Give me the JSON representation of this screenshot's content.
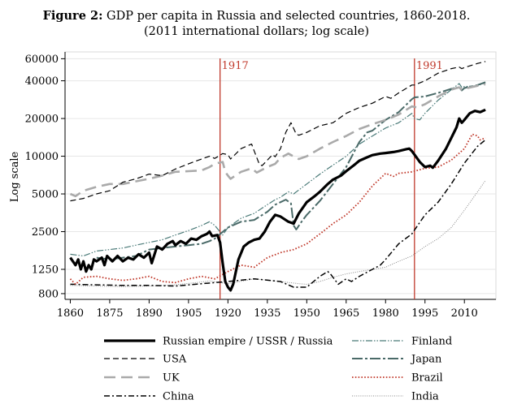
{
  "figure": {
    "label": "Figure 2:",
    "title": "GDP per capita in Russia and selected countries, 1860-2018.",
    "subtitle": "(2011 international dollars; log scale)"
  },
  "chart_data": {
    "type": "line",
    "title": "Figure 2: GDP per capita in Russia and selected countries, 1860-2018.",
    "subtitle": "(2011 international dollars; log scale)",
    "xlabel": "",
    "ylabel": "Log scale",
    "xlim": [
      1858,
      2022
    ],
    "ylim": [
      720,
      68000
    ],
    "y_scale": "log",
    "grid": true,
    "legend_position": "bottom",
    "x_ticks": [
      1860,
      1875,
      1890,
      1905,
      1920,
      1935,
      1950,
      1965,
      1980,
      1995,
      2010
    ],
    "y_ticks": [
      800,
      1250,
      2500,
      5000,
      10000,
      20000,
      40000,
      60000
    ],
    "y_tick_labels": [
      "800",
      "1250",
      "2500",
      "5000",
      "10000",
      "20000",
      "40000",
      "60000"
    ],
    "vlines": [
      {
        "x": 1917,
        "label": "1917",
        "color": "#c0392b"
      },
      {
        "x": 1991,
        "label": "1991",
        "color": "#c0392b"
      }
    ],
    "series": [
      {
        "name": "Russian empire / USSR / Russia",
        "color": "#000000",
        "style": "solid-thick",
        "x": [
          1860,
          1862,
          1863,
          1864,
          1865,
          1866,
          1867,
          1868,
          1869,
          1870,
          1872,
          1873,
          1874,
          1876,
          1878,
          1880,
          1882,
          1884,
          1886,
          1888,
          1890,
          1891,
          1893,
          1895,
          1897,
          1899,
          1900,
          1902,
          1904,
          1906,
          1908,
          1910,
          1912,
          1913,
          1914,
          1916,
          1917,
          1918,
          1919,
          1920,
          1921,
          1922,
          1924,
          1926,
          1928,
          1930,
          1932,
          1934,
          1936,
          1938,
          1940,
          1943,
          1945,
          1947,
          1950,
          1953,
          1955,
          1958,
          1960,
          1963,
          1965,
          1968,
          1970,
          1973,
          1975,
          1978,
          1980,
          1983,
          1985,
          1988,
          1989,
          1990,
          1991,
          1993,
          1995,
          1997,
          1998,
          2000,
          2003,
          2005,
          2007,
          2008,
          2009,
          2010,
          2012,
          2014,
          2016,
          2018
        ],
        "y": [
          1550,
          1350,
          1500,
          1250,
          1450,
          1200,
          1350,
          1250,
          1500,
          1450,
          1550,
          1350,
          1600,
          1450,
          1600,
          1450,
          1550,
          1500,
          1650,
          1550,
          1700,
          1400,
          1900,
          1800,
          2000,
          2100,
          1950,
          2100,
          2000,
          2200,
          2150,
          2300,
          2400,
          2500,
          2300,
          2350,
          2050,
          1400,
          1000,
          900,
          850,
          950,
          1500,
          1900,
          2050,
          2150,
          2200,
          2500,
          3000,
          3400,
          3300,
          3000,
          2900,
          3500,
          4300,
          4800,
          5200,
          6000,
          6500,
          7000,
          7600,
          8500,
          9200,
          9800,
          10200,
          10500,
          10600,
          10800,
          11000,
          11400,
          11500,
          11000,
          10300,
          9000,
          8200,
          8400,
          8100,
          9200,
          11500,
          14000,
          17000,
          20000,
          18500,
          19500,
          22000,
          23000,
          22500,
          23500
        ]
      },
      {
        "name": "USA",
        "color": "#000000",
        "style": "dashed",
        "x": [
          1860,
          1865,
          1870,
          1875,
          1880,
          1885,
          1890,
          1895,
          1900,
          1905,
          1910,
          1913,
          1915,
          1918,
          1920,
          1921,
          1925,
          1929,
          1930,
          1932,
          1933,
          1935,
          1937,
          1938,
          1940,
          1942,
          1944,
          1946,
          1947,
          1950,
          1955,
          1960,
          1965,
          1970,
          1975,
          1980,
          1982,
          1985,
          1990,
          1991,
          1995,
          2000,
          2005,
          2008,
          2009,
          2010,
          2015,
          2018
        ],
        "y": [
          4400,
          4600,
          5000,
          5300,
          6200,
          6600,
          7200,
          7000,
          7900,
          8700,
          9500,
          10000,
          9600,
          10500,
          10300,
          9500,
          11500,
          12500,
          11000,
          8600,
          8400,
          9300,
          10300,
          9900,
          11500,
          15500,
          18500,
          15000,
          14700,
          15500,
          17500,
          18500,
          22000,
          24500,
          26500,
          30000,
          29000,
          32000,
          37000,
          37000,
          40000,
          46000,
          50000,
          51500,
          50000,
          51000,
          55000,
          57000
        ]
      },
      {
        "name": "UK",
        "color": "#aaaaaa",
        "style": "long-dash",
        "x": [
          1860,
          1862,
          1865,
          1870,
          1875,
          1880,
          1885,
          1890,
          1895,
          1900,
          1905,
          1910,
          1913,
          1915,
          1918,
          1919,
          1920,
          1921,
          1925,
          1929,
          1931,
          1935,
          1938,
          1940,
          1943,
          1946,
          1947,
          1950,
          1955,
          1960,
          1965,
          1970,
          1975,
          1980,
          1985,
          1990,
          1992,
          1995,
          2000,
          2005,
          2008,
          2009,
          2010,
          2015,
          2018
        ],
        "y": [
          5000,
          4800,
          5300,
          5700,
          6000,
          6000,
          6300,
          6600,
          7000,
          7500,
          7600,
          7700,
          8200,
          8700,
          9000,
          7500,
          7000,
          6600,
          7500,
          8000,
          7400,
          8200,
          8700,
          9700,
          10500,
          9700,
          9500,
          10000,
          11500,
          13000,
          14500,
          16500,
          18000,
          19500,
          21500,
          25000,
          24500,
          26000,
          30000,
          34000,
          35500,
          34000,
          34500,
          36500,
          37500
        ]
      },
      {
        "name": "China",
        "color": "#000000",
        "style": "dash-dot",
        "x": [
          1860,
          1870,
          1880,
          1890,
          1900,
          1910,
          1920,
          1930,
          1940,
          1945,
          1950,
          1955,
          1958,
          1959,
          1962,
          1965,
          1967,
          1970,
          1975,
          1978,
          1980,
          1985,
          1990,
          1995,
          2000,
          2005,
          2010,
          2015,
          2018
        ],
        "y": [
          950,
          940,
          930,
          930,
          920,
          960,
          1000,
          1050,
          1000,
          900,
          900,
          1100,
          1200,
          1150,
          950,
          1050,
          1000,
          1100,
          1250,
          1350,
          1500,
          2000,
          2400,
          3400,
          4300,
          6000,
          8800,
          12000,
          13500
        ]
      },
      {
        "name": "Finland",
        "color": "#4a7a78",
        "style": "dash-dot-dot",
        "x": [
          1860,
          1865,
          1870,
          1875,
          1880,
          1885,
          1890,
          1895,
          1900,
          1905,
          1910,
          1913,
          1915,
          1918,
          1920,
          1925,
          1930,
          1935,
          1938,
          1940,
          1943,
          1945,
          1950,
          1955,
          1960,
          1965,
          1970,
          1975,
          1980,
          1985,
          1990,
          1991,
          1993,
          1995,
          2000,
          2005,
          2008,
          2009,
          2010,
          2015,
          2018
        ],
        "y": [
          1650,
          1600,
          1750,
          1800,
          1850,
          1950,
          2050,
          2150,
          2350,
          2550,
          2800,
          3000,
          2800,
          2350,
          2700,
          3200,
          3500,
          4100,
          4500,
          4700,
          5200,
          5000,
          6000,
          7200,
          8500,
          10000,
          12500,
          14500,
          16800,
          18500,
          22000,
          20000,
          19500,
          22000,
          28000,
          34000,
          38000,
          35500,
          36000,
          36500,
          38500
        ]
      },
      {
        "name": "Japan",
        "color": "#4a6a68",
        "style": "long-dash-dot",
        "x": [
          1870,
          1875,
          1880,
          1885,
          1890,
          1895,
          1900,
          1905,
          1910,
          1913,
          1915,
          1920,
          1925,
          1930,
          1935,
          1938,
          1940,
          1942,
          1944,
          1945,
          1946,
          1948,
          1950,
          1955,
          1960,
          1965,
          1970,
          1973,
          1975,
          1980,
          1985,
          1990,
          1991,
          1995,
          2000,
          2005,
          2008,
          2009,
          2010,
          2015,
          2018
        ],
        "y": [
          1550,
          1500,
          1550,
          1600,
          1800,
          1850,
          1900,
          1950,
          2000,
          2100,
          2200,
          2700,
          3000,
          3100,
          3600,
          4100,
          4300,
          4500,
          4200,
          2800,
          2600,
          3000,
          3400,
          4400,
          6000,
          8200,
          13000,
          15500,
          16000,
          19500,
          22500,
          28500,
          29500,
          30000,
          32000,
          34500,
          35500,
          33500,
          35000,
          37000,
          39000
        ]
      },
      {
        "name": "Brazil",
        "color": "#c0392b",
        "style": "dotted",
        "x": [
          1860,
          1862,
          1865,
          1870,
          1875,
          1880,
          1885,
          1890,
          1895,
          1900,
          1905,
          1910,
          1915,
          1920,
          1925,
          1930,
          1935,
          1940,
          1945,
          1950,
          1955,
          1960,
          1965,
          1970,
          1975,
          1980,
          1983,
          1985,
          1990,
          1995,
          2000,
          2005,
          2010,
          2013,
          2015,
          2016,
          2018
        ],
        "y": [
          1050,
          950,
          1080,
          1100,
          1050,
          1020,
          1050,
          1100,
          1000,
          980,
          1050,
          1100,
          1050,
          1200,
          1350,
          1300,
          1550,
          1700,
          1800,
          2000,
          2400,
          2900,
          3400,
          4300,
          5800,
          7300,
          6900,
          7300,
          7500,
          8000,
          8200,
          9300,
          11500,
          15000,
          14500,
          13500,
          14000
        ]
      },
      {
        "name": "India",
        "color": "#888888",
        "style": "fine-dotted",
        "x": [
          1860,
          1870,
          1880,
          1890,
          1900,
          1910,
          1913,
          1920,
          1930,
          1940,
          1947,
          1950,
          1955,
          1960,
          1965,
          1970,
          1975,
          1980,
          1985,
          1990,
          1995,
          2000,
          2005,
          2010,
          2015,
          2018
        ],
        "y": [
          930,
          920,
          910,
          920,
          940,
          990,
          1010,
          960,
          1050,
          1000,
          960,
          950,
          1000,
          1080,
          1150,
          1200,
          1250,
          1300,
          1450,
          1600,
          1900,
          2200,
          2700,
          3700,
          5200,
          6400
        ]
      }
    ]
  }
}
